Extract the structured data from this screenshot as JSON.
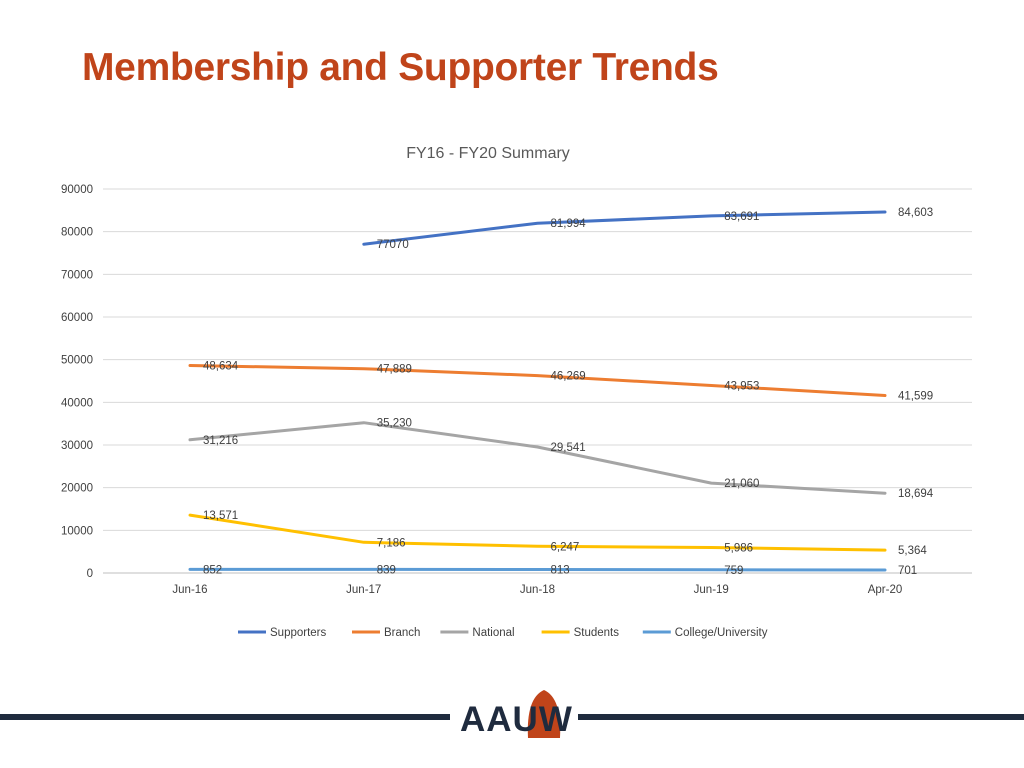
{
  "slide": {
    "title": "Membership and Supporter Trends"
  },
  "logo": {
    "text": "AAUW",
    "colors": {
      "navy": "#1F2B3E",
      "orange": "#C0441A"
    }
  },
  "chart_data": {
    "type": "line",
    "title": "FY16 - FY20 Summary",
    "xlabel": "",
    "ylabel": "",
    "categories": [
      "Jun-16",
      "Jun-17",
      "Jun-18",
      "Jun-19",
      "Apr-20"
    ],
    "ylim": [
      0,
      90000
    ],
    "yticks": [
      0,
      10000,
      20000,
      30000,
      40000,
      50000,
      60000,
      70000,
      80000,
      90000
    ],
    "ytick_labels": [
      "0",
      "10000",
      "20000",
      "30000",
      "40000",
      "50000",
      "60000",
      "70000",
      "80000",
      "90000"
    ],
    "grid": true,
    "legend": "bottom",
    "series": [
      {
        "name": "Supporters",
        "color": "#4472C4",
        "values": [
          null,
          77070,
          81994,
          83691,
          84603
        ],
        "labels": [
          null,
          "77070",
          "81,994",
          "83,691",
          "84,603"
        ]
      },
      {
        "name": "Branch",
        "color": "#ED7D31",
        "values": [
          48634,
          47889,
          46269,
          43953,
          41599
        ],
        "labels": [
          "48,634",
          "47,889",
          "46,269",
          "43,953",
          "41,599"
        ]
      },
      {
        "name": "National",
        "color": "#A5A5A5",
        "values": [
          31216,
          35230,
          29541,
          21060,
          18694
        ],
        "labels": [
          "31,216",
          "35,230",
          "29,541",
          "21,060",
          "18,694"
        ]
      },
      {
        "name": "Students",
        "color": "#FFC000",
        "values": [
          13571,
          7186,
          6247,
          5986,
          5364
        ],
        "labels": [
          "13,571",
          "7,186",
          "6,247",
          "5,986",
          "5,364"
        ]
      },
      {
        "name": "College/University",
        "color": "#5B9BD5",
        "values": [
          852,
          839,
          813,
          759,
          701
        ],
        "labels": [
          "852",
          "839",
          "813",
          "759",
          "701"
        ]
      }
    ]
  }
}
